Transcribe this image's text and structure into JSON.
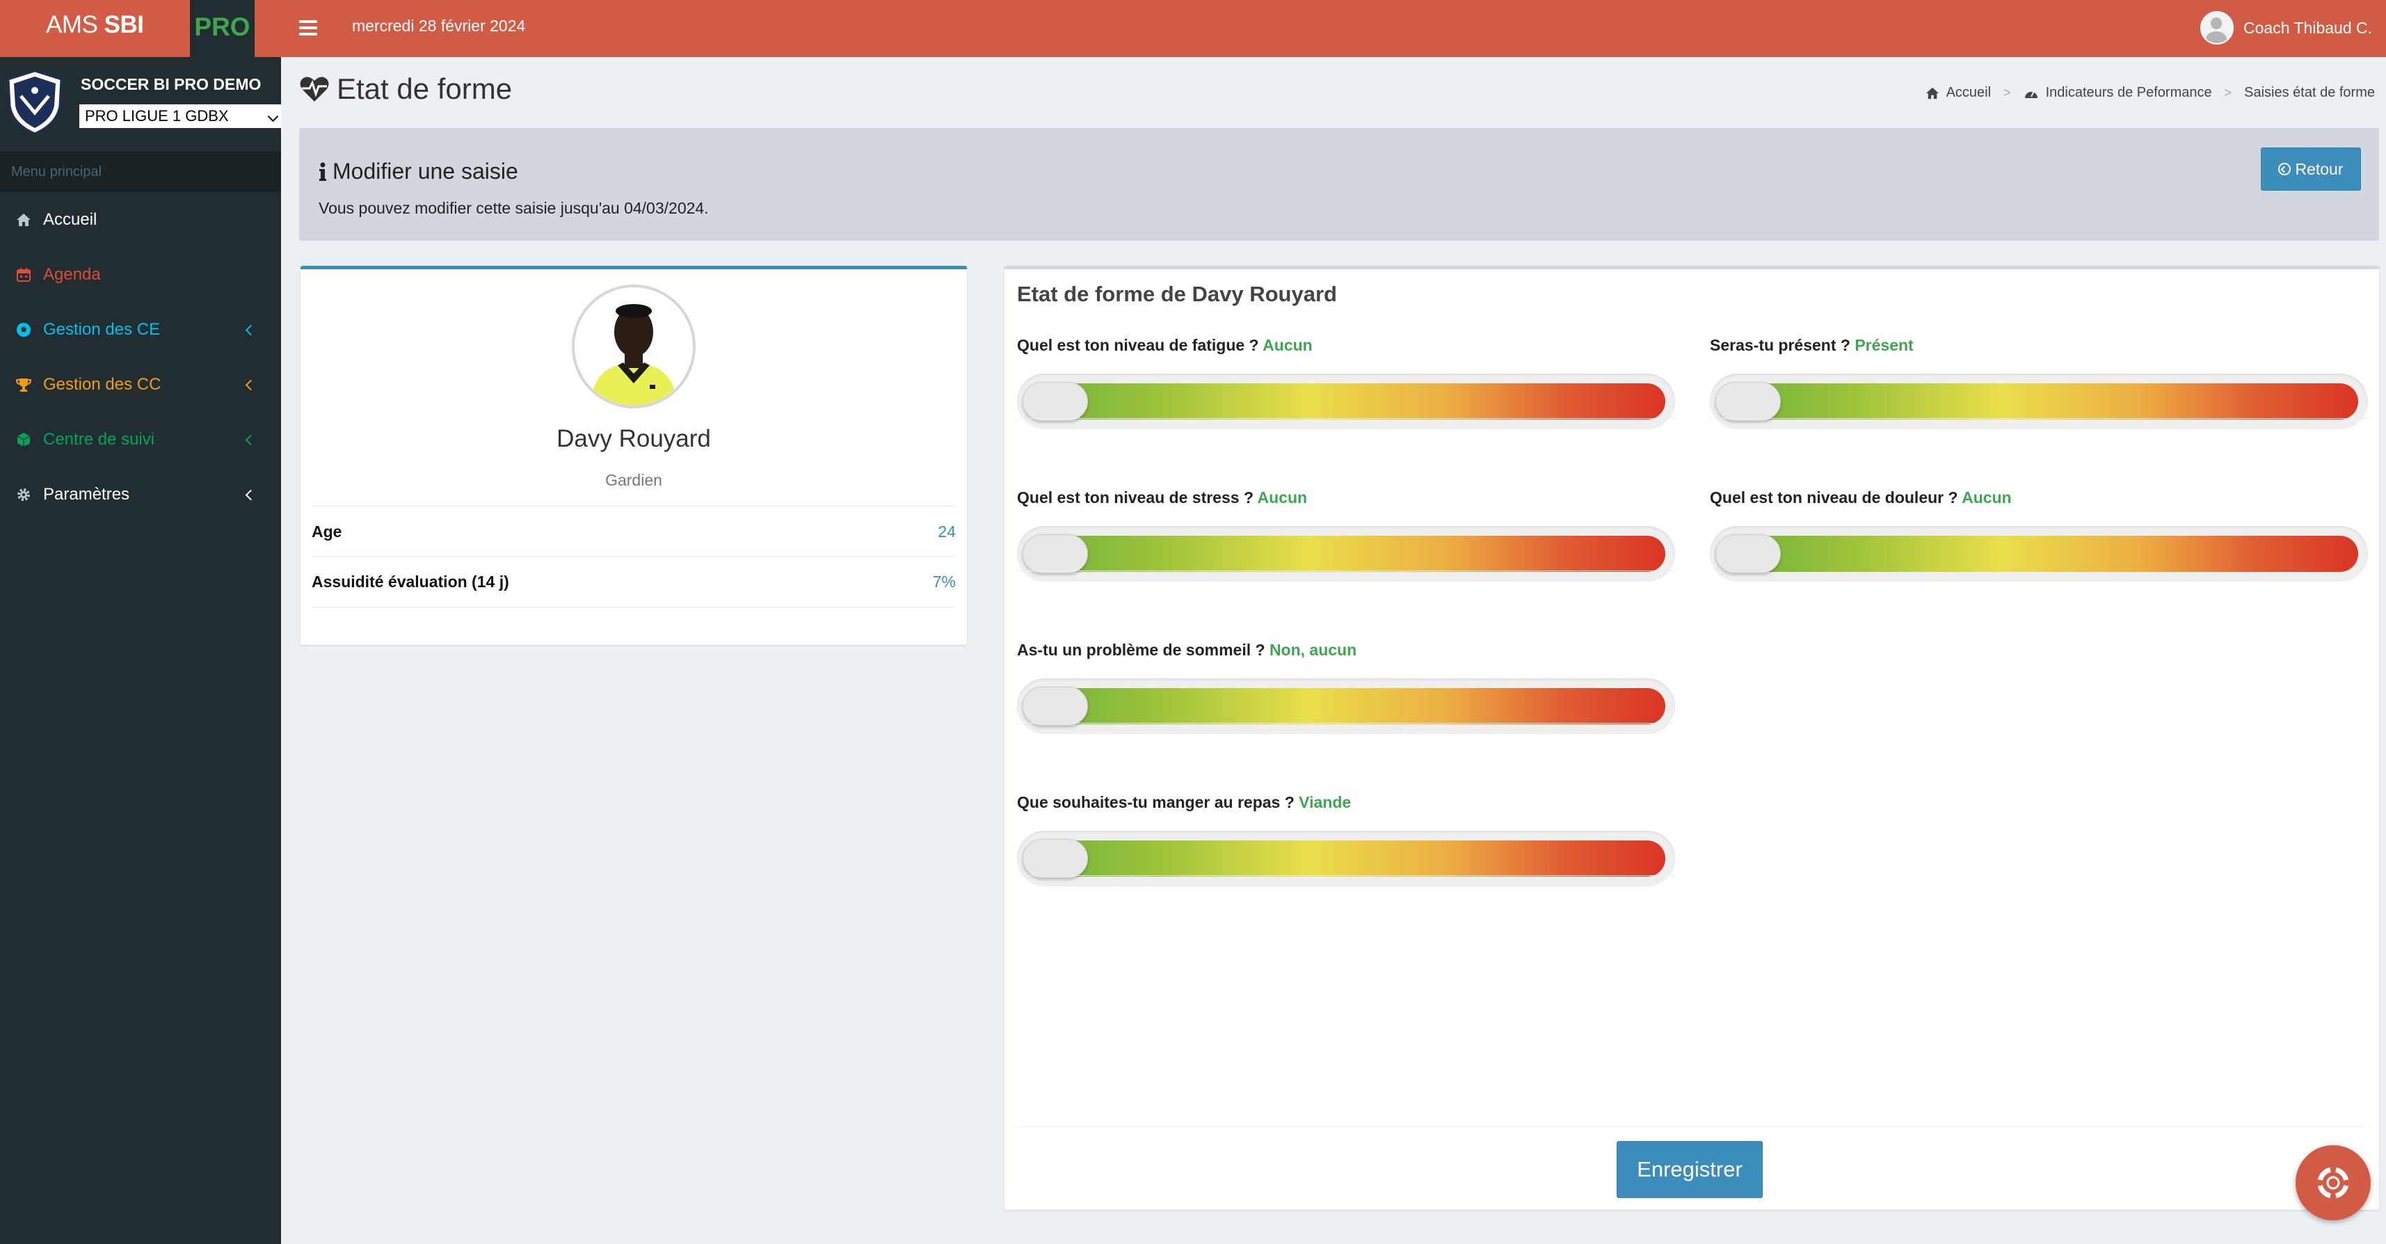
{
  "brand": {
    "ams": "AMS",
    "sbi": "SBI",
    "pro": "PRO"
  },
  "topbar": {
    "date": "mercredi 28 février 2024",
    "user_name": "Coach Thibaud C."
  },
  "club": {
    "name": "SOCCER BI PRO DEMO",
    "team_selected": "PRO LIGUE 1 GDBX"
  },
  "sidebar": {
    "header": "Menu principal",
    "items": [
      {
        "label": "Accueil",
        "color": "#ffffff",
        "icon": "home-icon",
        "has_children": false
      },
      {
        "label": "Agenda",
        "color": "#dd4b39",
        "icon": "calendar-icon",
        "has_children": false
      },
      {
        "label": "Gestion des CE",
        "color": "#00c0ef",
        "icon": "soccer-ball-icon",
        "has_children": true
      },
      {
        "label": "Gestion des CC",
        "color": "#f39c12",
        "icon": "trophy-icon",
        "has_children": true
      },
      {
        "label": "Centre de suivi",
        "color": "#00a65a",
        "icon": "cube-icon",
        "has_children": true
      },
      {
        "label": "Paramètres",
        "color": "#ffffff",
        "icon": "gear-icon",
        "has_children": true
      }
    ]
  },
  "page": {
    "title": "Etat de forme",
    "breadcrumb": [
      "Accueil",
      "Indicateurs de Peformance",
      "Saisies état de forme"
    ]
  },
  "callout": {
    "title": "Modifier une saisie",
    "text": "Vous pouvez modifier cette saisie jusqu'au 04/03/2024.",
    "back_button": "Retour"
  },
  "player": {
    "name": "Davy Rouyard",
    "position": "Gardien",
    "stats": [
      {
        "label": "Age",
        "value": "24"
      },
      {
        "label": "Assuidité évaluation (14 j)",
        "value": "7%"
      }
    ]
  },
  "form": {
    "title": "Etat de forme de Davy Rouyard",
    "questions": [
      {
        "label": "Quel est ton niveau de fatigue ?",
        "answer": "Aucun",
        "level": 0
      },
      {
        "label": "Seras-tu présent ?",
        "answer": "Présent",
        "level": 0
      },
      {
        "label": "Quel est ton niveau de stress ?",
        "answer": "Aucun",
        "level": 0
      },
      {
        "label": "Quel est ton niveau de douleur ?",
        "answer": "Aucun",
        "level": 0
      },
      {
        "label": "As-tu un problème de sommeil ?",
        "answer": "Non, aucun",
        "level": 0
      },
      {
        "label": "Que souhaites-tu manger au repas ?",
        "answer": "Viande",
        "level": 0
      }
    ],
    "save_button": "Enregistrer"
  },
  "colors": {
    "header": "#d15b45",
    "sidebar": "#222d32",
    "primary": "#3c8dbc",
    "answer": "#3fa650"
  }
}
